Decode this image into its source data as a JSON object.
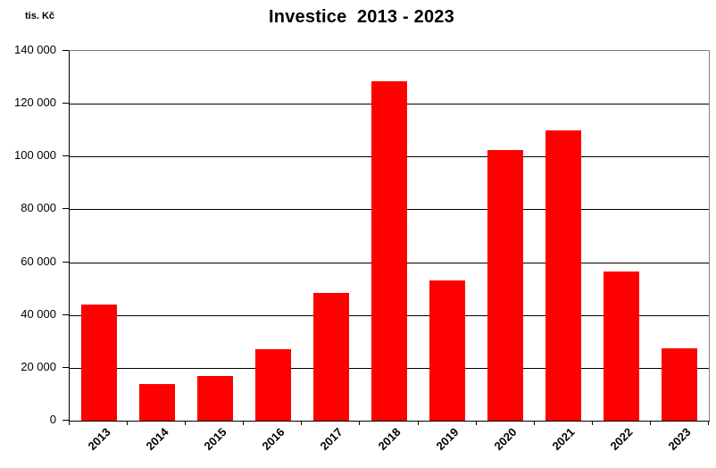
{
  "chart_data": {
    "type": "bar",
    "title": "Investice  2013 - 2023",
    "unit_label": "tis. Kč",
    "categories": [
      "2013",
      "2014",
      "2015",
      "2016",
      "2017",
      "2018",
      "2019",
      "2020",
      "2021",
      "2022",
      "2023"
    ],
    "values": [
      44000,
      14000,
      17000,
      27000,
      48500,
      128500,
      53000,
      102500,
      110000,
      56500,
      27500
    ],
    "ylabel": "tis. Kč",
    "xlabel": "",
    "ylim": [
      0,
      140000
    ],
    "y_tick_step": 20000,
    "y_tick_labels": [
      "0",
      "20 000",
      "40 000",
      "60 000",
      "80 000",
      "100 000",
      "120 000",
      "140 000"
    ],
    "bar_color": "#ff0000",
    "gridline_color": "#000000",
    "frame_color": "#808080",
    "grid": true,
    "legend_position": "none",
    "x_label_rotation_deg": 45
  }
}
